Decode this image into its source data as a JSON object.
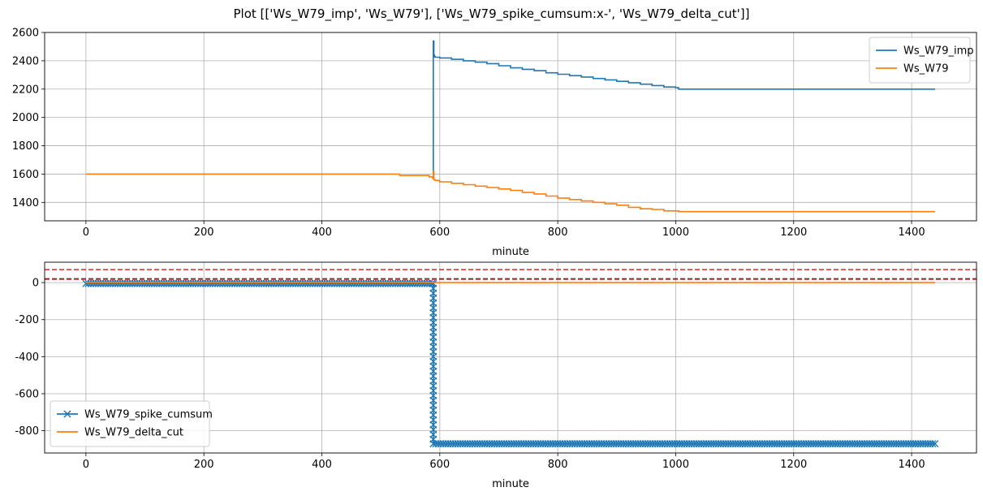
{
  "figure_title": "Plot [['Ws_W79_imp', 'Ws_W79'], ['Ws_W79_spike_cumsum:x-', 'Ws_W79_delta_cut']]",
  "colors": {
    "blue": "#1f77b4",
    "orange": "#ff7f0e",
    "red_dashed": "#d62728",
    "black_dashed": "#000000",
    "grid": "#b0b0b0"
  },
  "chart_data": [
    {
      "type": "line",
      "xlabel": "minute",
      "ylabel": "",
      "xlim": [
        -70,
        1510
      ],
      "ylim": [
        1270,
        2600
      ],
      "xticks": [
        0,
        200,
        400,
        600,
        800,
        1000,
        1200,
        1400
      ],
      "yticks": [
        1400,
        1600,
        1800,
        2000,
        2200,
        2400,
        2600
      ],
      "grid": true,
      "legend_position": "upper right",
      "series": [
        {
          "name": "Ws_W79_imp",
          "color": "#1f77b4",
          "marker": "",
          "x": [
            588,
            589,
            590,
            591,
            592,
            600,
            620,
            640,
            660,
            680,
            700,
            720,
            740,
            760,
            780,
            800,
            820,
            840,
            860,
            880,
            900,
            920,
            940,
            960,
            980,
            1000,
            1005,
            1440
          ],
          "y": [
            1600,
            2540,
            2440,
            2430,
            2425,
            2420,
            2410,
            2400,
            2390,
            2380,
            2365,
            2350,
            2340,
            2330,
            2315,
            2305,
            2295,
            2285,
            2275,
            2265,
            2255,
            2245,
            2235,
            2225,
            2215,
            2210,
            2200,
            2200
          ]
        },
        {
          "name": "Ws_W79",
          "color": "#ff7f0e",
          "marker": "",
          "x": [
            0,
            530,
            532,
            580,
            582,
            588,
            589,
            590,
            592,
            600,
            620,
            640,
            660,
            680,
            700,
            720,
            740,
            760,
            780,
            800,
            820,
            840,
            860,
            880,
            900,
            920,
            940,
            960,
            980,
            1000,
            1005,
            1440
          ],
          "y": [
            1600,
            1600,
            1590,
            1590,
            1580,
            1570,
            1620,
            1560,
            1555,
            1545,
            1535,
            1525,
            1515,
            1505,
            1495,
            1485,
            1470,
            1460,
            1445,
            1430,
            1420,
            1410,
            1400,
            1390,
            1380,
            1365,
            1355,
            1350,
            1340,
            1340,
            1335,
            1335
          ]
        }
      ]
    },
    {
      "type": "line",
      "xlabel": "minute",
      "ylabel": "",
      "xlim": [
        -70,
        1510
      ],
      "ylim": [
        -920,
        110
      ],
      "xticks": [
        0,
        200,
        400,
        600,
        800,
        1000,
        1200,
        1400
      ],
      "yticks": [
        -800,
        -600,
        -400,
        -200,
        0
      ],
      "grid": true,
      "legend_position": "lower left",
      "hlines": [
        {
          "y": 70,
          "color": "#d62728",
          "style": "dashed"
        },
        {
          "y": 20,
          "color": "#000000",
          "style": "dashed"
        },
        {
          "y": 18,
          "color": "#d62728",
          "style": "dashed"
        }
      ],
      "series": [
        {
          "name": "Ws_W79_spike_cumsum",
          "color": "#1f77b4",
          "marker": "x",
          "x_start": 0,
          "x_end": 1440,
          "step_x": 589,
          "y_before": -5,
          "y_after": -870
        },
        {
          "name": "Ws_W79_delta_cut",
          "color": "#ff7f0e",
          "marker": "",
          "x": [
            0,
            588,
            589,
            590,
            1440
          ],
          "y": [
            0,
            0,
            0,
            0,
            0
          ]
        }
      ]
    }
  ]
}
